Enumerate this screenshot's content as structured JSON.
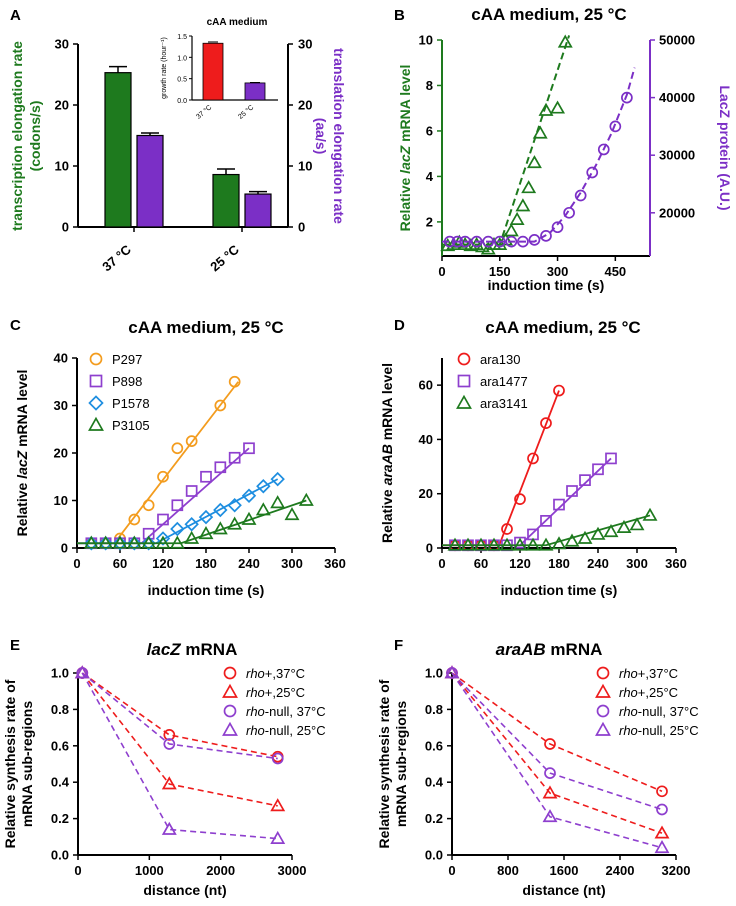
{
  "chart_data": [
    {
      "id": "A",
      "type": "bar",
      "panel_label": "A",
      "categories": [
        "37 °C",
        "25 °C"
      ],
      "series": [
        {
          "name": "transcription",
          "values": [
            25.3,
            8.6
          ],
          "errors": [
            1.0,
            0.9
          ],
          "color": "#1e7a1e"
        },
        {
          "name": "translation",
          "values": [
            15.0,
            5.4
          ],
          "errors": [
            0.4,
            0.4
          ],
          "color": "#7b2fc6"
        }
      ],
      "ylabel": "transcription elongation rate (codons/s)",
      "y2label": "translation elongation rate (aa/s)",
      "ylim": [
        0,
        30
      ],
      "yticks": [
        "0",
        "10",
        "20",
        "30"
      ],
      "inset": {
        "title": "cAA medium",
        "ylabel": "growth rate (hour⁻¹)",
        "categories": [
          "37 °C",
          "25 °C"
        ],
        "values": [
          1.33,
          0.4
        ],
        "errors": [
          0.03,
          0.01
        ],
        "colors": [
          "#ee1c1c",
          "#7b2fc6"
        ],
        "ylim": [
          0,
          1.5
        ],
        "yticks": [
          "0.0",
          "0.5",
          "1.0",
          "1.5"
        ]
      }
    },
    {
      "id": "B",
      "type": "scatter",
      "panel_label": "B",
      "title": "cAA medium, 25 °C",
      "xlabel": "induction time (s)",
      "ylabel_pre": "Relative ",
      "ylabel_it": "lacZ",
      "ylabel_post": " mRNA level",
      "y2label": "LacZ protein (A.U.)",
      "xlim": [
        0,
        540
      ],
      "xticks": [
        "0",
        "150",
        "300",
        "450"
      ],
      "ylim": [
        0.5,
        10
      ],
      "yticks": [
        "2",
        "4",
        "6",
        "8",
        "10"
      ],
      "y2lim": [
        12500,
        50000
      ],
      "y2ticks": [
        "20000",
        "30000",
        "40000",
        "50000"
      ],
      "series": [
        {
          "name": "lacZ mRNA",
          "color": "#1e7a1e",
          "marker": "triangle",
          "x": [
            15,
            30,
            45,
            60,
            75,
            90,
            105,
            120,
            135,
            150,
            165,
            180,
            195,
            210,
            225,
            240,
            255,
            270,
            300,
            320
          ],
          "y": [
            0.95,
            1.0,
            1.1,
            1.0,
            0.95,
            1.0,
            0.9,
            0.8,
            1.0,
            1.0,
            1.2,
            1.6,
            2.1,
            2.7,
            3.5,
            4.6,
            5.9,
            6.9,
            7.0,
            9.9
          ],
          "fit_x": [
            0,
            150,
            330
          ],
          "fit_y": [
            1.0,
            1.0,
            10.2
          ]
        },
        {
          "name": "LacZ protein",
          "color": "#7b2fc6",
          "marker": "circle",
          "axis": "y2",
          "x": [
            20,
            40,
            60,
            90,
            120,
            150,
            180,
            210,
            240,
            270,
            300,
            330,
            360,
            390,
            420,
            450,
            480
          ],
          "y": [
            15000,
            15000,
            15000,
            15000,
            15000,
            15000,
            15000,
            15000,
            15300,
            16000,
            17500,
            20000,
            23000,
            27000,
            31000,
            35000,
            40000
          ],
          "fit_x": [
            0,
            240,
            280,
            320,
            360,
            400,
            440,
            480,
            500
          ],
          "fit_y": [
            15000,
            15000,
            16500,
            19500,
            23500,
            28300,
            33800,
            40500,
            45200
          ]
        }
      ]
    },
    {
      "id": "C",
      "type": "scatter",
      "panel_label": "C",
      "title": "cAA medium, 25 °C",
      "xlabel": "induction time (s)",
      "ylabel_pre": "Relative ",
      "ylabel_it": "lacZ",
      "ylabel_post": " mRNA level",
      "xlim": [
        0,
        360
      ],
      "xticks": [
        "0",
        "60",
        "120",
        "180",
        "240",
        "300",
        "360"
      ],
      "ylim": [
        0,
        40
      ],
      "yticks": [
        "0",
        "10",
        "20",
        "30",
        "40"
      ],
      "series": [
        {
          "name": "P297",
          "color": "#f39c1e",
          "marker": "circle",
          "x": [
            20,
            40,
            60,
            80,
            100,
            120,
            140,
            160,
            200,
            220
          ],
          "y": [
            1,
            1,
            2,
            6,
            9,
            15,
            21,
            22.5,
            30,
            35
          ],
          "fit_x": [
            0,
            52,
            225
          ],
          "fit_y": [
            1,
            1,
            35
          ]
        },
        {
          "name": "P898",
          "color": "#8e3fce",
          "marker": "square",
          "x": [
            20,
            40,
            60,
            80,
            100,
            120,
            140,
            160,
            180,
            200,
            220,
            240
          ],
          "y": [
            1,
            1,
            1,
            1,
            3,
            6,
            9,
            12,
            15,
            17,
            19,
            21
          ],
          "fit_x": [
            0,
            90,
            240
          ],
          "fit_y": [
            1,
            1,
            21
          ]
        },
        {
          "name": "P1578",
          "color": "#1e8ee0",
          "marker": "diamond",
          "x": [
            20,
            40,
            60,
            80,
            100,
            120,
            140,
            160,
            180,
            200,
            220,
            240,
            260,
            280
          ],
          "y": [
            1,
            1,
            1,
            1,
            1,
            2,
            4,
            5,
            6.5,
            8,
            9,
            11,
            13,
            14.5
          ],
          "fit_x": [
            0,
            110,
            280
          ],
          "fit_y": [
            1,
            1,
            14.5
          ]
        },
        {
          "name": "P3105",
          "color": "#1e7a1e",
          "marker": "triangle",
          "x": [
            20,
            40,
            60,
            80,
            100,
            120,
            140,
            160,
            180,
            200,
            220,
            240,
            260,
            280,
            300,
            320
          ],
          "y": [
            1,
            1,
            1,
            1,
            1,
            1,
            1,
            2,
            3,
            4,
            5,
            6,
            8,
            9.5,
            7,
            10
          ],
          "fit_x": [
            0,
            145,
            320
          ],
          "fit_y": [
            1,
            1,
            10
          ]
        }
      ]
    },
    {
      "id": "D",
      "type": "scatter",
      "panel_label": "D",
      "title": "cAA medium, 25 °C",
      "xlabel": "induction time (s)",
      "ylabel_pre": "Relative ",
      "ylabel_it": "araAB",
      "ylabel_post": " mRNA level",
      "xlim": [
        0,
        360
      ],
      "xticks": [
        "0",
        "60",
        "120",
        "180",
        "240",
        "300",
        "360"
      ],
      "ylim": [
        0,
        70
      ],
      "yticks": [
        "0",
        "20",
        "40",
        "60"
      ],
      "series": [
        {
          "name": "ara130",
          "color": "#ee1c1c",
          "marker": "circle",
          "x": [
            20,
            40,
            60,
            80,
            100,
            120,
            140,
            160,
            180
          ],
          "y": [
            1,
            1,
            1,
            1,
            7,
            18,
            33,
            46,
            58
          ],
          "fit_x": [
            0,
            88,
            180
          ],
          "fit_y": [
            1,
            1,
            58
          ]
        },
        {
          "name": "ara1477",
          "color": "#8e3fce",
          "marker": "square",
          "x": [
            20,
            40,
            60,
            80,
            100,
            120,
            140,
            160,
            180,
            200,
            220,
            240,
            260
          ],
          "y": [
            1,
            1,
            1,
            1,
            1,
            2,
            5,
            10,
            16,
            21,
            25,
            29,
            33
          ],
          "fit_x": [
            0,
            120,
            260
          ],
          "fit_y": [
            1,
            1,
            33
          ]
        },
        {
          "name": "ara3141",
          "color": "#1e7a1e",
          "marker": "triangle",
          "x": [
            20,
            40,
            60,
            80,
            100,
            120,
            140,
            160,
            180,
            200,
            220,
            240,
            260,
            280,
            300,
            320
          ],
          "y": [
            1,
            1,
            1,
            1,
            1,
            1,
            1,
            1,
            1.5,
            2.5,
            3.5,
            5,
            6,
            7.5,
            8.5,
            12
          ],
          "fit_x": [
            0,
            160,
            320
          ],
          "fit_y": [
            1,
            1,
            12
          ]
        }
      ]
    },
    {
      "id": "E",
      "type": "line",
      "panel_label": "E",
      "title_it": "lacZ",
      "title_post": " mRNA",
      "xlabel": "distance (nt)",
      "ylabel_1": "Relative synthesis rate of",
      "ylabel_2": "mRNA sub-regions",
      "xlim": [
        0,
        3000
      ],
      "xticks": [
        "0",
        "1000",
        "2000",
        "3000"
      ],
      "ylim": [
        0,
        1
      ],
      "yticks": [
        "0.0",
        "0.2",
        "0.4",
        "0.6",
        "0.8",
        "1.0"
      ],
      "series": [
        {
          "name": "rho+,37°C",
          "label_it": "rho",
          "label_rest": "+,37°C",
          "color": "#ee1c1c",
          "marker": "circle",
          "x": [
            60,
            1280,
            2800
          ],
          "y": [
            1.0,
            0.66,
            0.54
          ]
        },
        {
          "name": "rho+,25°C",
          "label_it": "rho",
          "label_rest": "+,25°C",
          "color": "#ee1c1c",
          "marker": "triangle",
          "x": [
            60,
            1280,
            2800
          ],
          "y": [
            1.0,
            0.39,
            0.27
          ]
        },
        {
          "name": "rho-null, 37°C",
          "label_it": "rho",
          "label_rest": "-null, 37°C",
          "color": "#8e3fce",
          "marker": "circle",
          "x": [
            60,
            1280,
            2800
          ],
          "y": [
            1.0,
            0.61,
            0.53
          ]
        },
        {
          "name": "rho-null, 25°C",
          "label_it": "rho",
          "label_rest": "-null, 25°C",
          "color": "#8e3fce",
          "marker": "triangle",
          "x": [
            60,
            1280,
            2800
          ],
          "y": [
            1.0,
            0.14,
            0.09
          ]
        }
      ]
    },
    {
      "id": "F",
      "type": "line",
      "panel_label": "F",
      "title_it": "araAB",
      "title_post": " mRNA",
      "xlabel": "distance (nt)",
      "ylabel_1": "Relative synthesis rate of",
      "ylabel_2": "mRNA sub-regions",
      "xlim": [
        0,
        3200
      ],
      "xticks": [
        "0",
        "800",
        "1600",
        "2400",
        "3200"
      ],
      "ylim": [
        0,
        1
      ],
      "yticks": [
        "0.0",
        "0.2",
        "0.4",
        "0.6",
        "0.8",
        "1.0"
      ],
      "series": [
        {
          "name": "rho+,37°C",
          "label_it": "rho",
          "label_rest": "+,37°C",
          "color": "#ee1c1c",
          "marker": "circle",
          "x": [
            0,
            1400,
            3000
          ],
          "y": [
            1.0,
            0.61,
            0.35
          ]
        },
        {
          "name": "rho+,25°C",
          "label_it": "rho",
          "label_rest": "+,25°C",
          "color": "#ee1c1c",
          "marker": "triangle",
          "x": [
            0,
            1400,
            3000
          ],
          "y": [
            1.0,
            0.34,
            0.12
          ]
        },
        {
          "name": "rho-null, 37°C",
          "label_it": "rho",
          "label_rest": "-null, 37°C",
          "color": "#8e3fce",
          "marker": "circle",
          "x": [
            0,
            1400,
            3000
          ],
          "y": [
            1.0,
            0.45,
            0.25
          ]
        },
        {
          "name": "rho-null, 25°C",
          "label_it": "rho",
          "label_rest": "-null, 25°C",
          "color": "#8e3fce",
          "marker": "triangle",
          "x": [
            0,
            1400,
            3000
          ],
          "y": [
            1.0,
            0.21,
            0.04
          ]
        }
      ]
    }
  ]
}
